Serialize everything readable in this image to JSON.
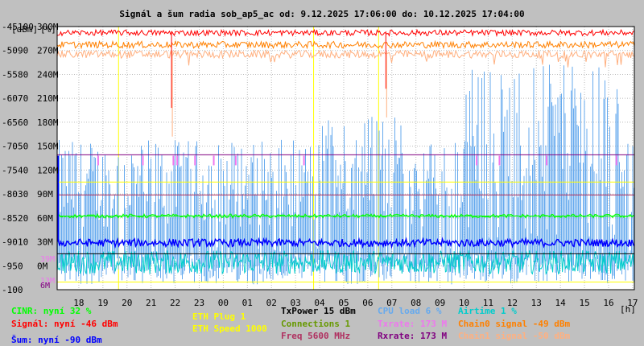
{
  "chart_data": {
    "type": "line",
    "title": "Signál a šum radia sob_ap5_ac od: 9.12.2025 17:06:00 do: 10.12.2025 17:04:00",
    "xunit": "[h]",
    "ylabel_dbm": "[dBm]",
    "ylabel_pct": "[%]",
    "x_ticks": [
      "18",
      "19",
      "20",
      "21",
      "22",
      "23",
      "00",
      "01",
      "02",
      "03",
      "04",
      "05",
      "06",
      "07",
      "08",
      "09",
      "10",
      "11",
      "12",
      "13",
      "14",
      "15",
      "16",
      "17"
    ],
    "xlim": [
      17.1,
      41.07
    ],
    "y_dbm_ticks": [
      "-45",
      "-50",
      "-55",
      "-60",
      "-65",
      "-70",
      "-75",
      "-80",
      "-85",
      "-90",
      "-95",
      "-100"
    ],
    "y_pct_ticks": [
      "100",
      "90",
      "80",
      "70",
      "60",
      "50",
      "40",
      "30",
      "20",
      "10",
      "0"
    ],
    "y_rate_ticks": [
      "300M",
      "270M",
      "240M",
      "210M",
      "180M",
      "150M",
      "120M",
      "90M",
      "60M",
      "30M",
      "0M"
    ],
    "y_extra_ticks": [
      "39M",
      "13M",
      "6M"
    ],
    "ylim_dbm": [
      -100,
      -45
    ],
    "series": [
      {
        "name": "Signál",
        "key": "signal",
        "color": "#ff0000",
        "level": -46
      },
      {
        "name": "Chain0 signal",
        "key": "chain0",
        "color": "#ff8000",
        "level": -49
      },
      {
        "name": "Chain1 signal",
        "key": "chain1",
        "color": "#ffb080",
        "level": -50
      },
      {
        "name": "Šum",
        "key": "noise",
        "color": "#0000ff",
        "level": -90
      },
      {
        "name": "CINR",
        "key": "cinr",
        "color": "#00ff00",
        "level_pct": 32
      },
      {
        "name": "CPU load",
        "key": "cpu",
        "color": "#66aaee",
        "level_pct": 6
      },
      {
        "name": "Airtime",
        "key": "airtime",
        "color": "#00cccc",
        "level_pct": 1
      },
      {
        "name": "Txrate",
        "key": "txrate",
        "color": "#ee77ee",
        "rate": "173 M"
      },
      {
        "name": "Rxrate",
        "key": "rxrate",
        "color": "#800080",
        "rate": "173 M"
      },
      {
        "name": "ETH Speed",
        "key": "ethspeed",
        "color": "#ffff00",
        "value": 1000
      }
    ],
    "horizontal_lines": [
      {
        "key": "rxrate",
        "y_dbm": -71.8,
        "color": "#800080"
      },
      {
        "key": "txrate",
        "y_dbm": -77.5,
        "color": "#ffff00"
      },
      {
        "key": "freq",
        "y_dbm": -80.2,
        "color": "#b03060"
      },
      {
        "key": "cinr_level",
        "y_dbm": -84.6,
        "color": "#00ff00"
      },
      {
        "key": "txpower",
        "y_dbm": -92.5,
        "color": "#000000"
      },
      {
        "key": "eth",
        "y_dbm": -98.4,
        "color": "#ffff00"
      }
    ],
    "vertical_lines_hours": [
      19.65,
      27.75,
      30.45
    ],
    "signal_spikes": [
      {
        "x": 21.85,
        "depth": -62
      },
      {
        "x": 30.75,
        "depth": -58
      }
    ],
    "grid": true
  },
  "legend": {
    "cinr": "CINR: nyní 32 %",
    "signal": "Signál: nyní -46 dBm",
    "noise": "Šum: nyní -90 dBm",
    "eth_plug": "ETH Plug 1",
    "eth_speed": "ETH Speed 1000",
    "txpower": "TxPower 15 dBm",
    "connections": "Connections 1",
    "freq": "Freq 5600 MHz",
    "cpu": "CPU load 6 %",
    "txrate": "Txrate: 173 M",
    "rxrate": "Rxrate: 173 M",
    "airtime": "Airtime 1 %",
    "chain0": "Chain0 signal -49 dBm",
    "chain1": "Chain1 signal -50 dBm"
  },
  "colors": {
    "background": "#c0c0c0",
    "plot_bg": "#ffffff",
    "cinr": "#00ff00",
    "signal": "#ff0000",
    "noise": "#0000ff",
    "eth": "#ffff00",
    "txpower": "#000000",
    "connections": "#669900",
    "freq": "#b03060",
    "cpu": "#66aaee",
    "txrate": "#ee77ee",
    "rxrate": "#800080",
    "airtime": "#00cccc",
    "chain0": "#ff8000",
    "chain1": "#ffb080"
  }
}
